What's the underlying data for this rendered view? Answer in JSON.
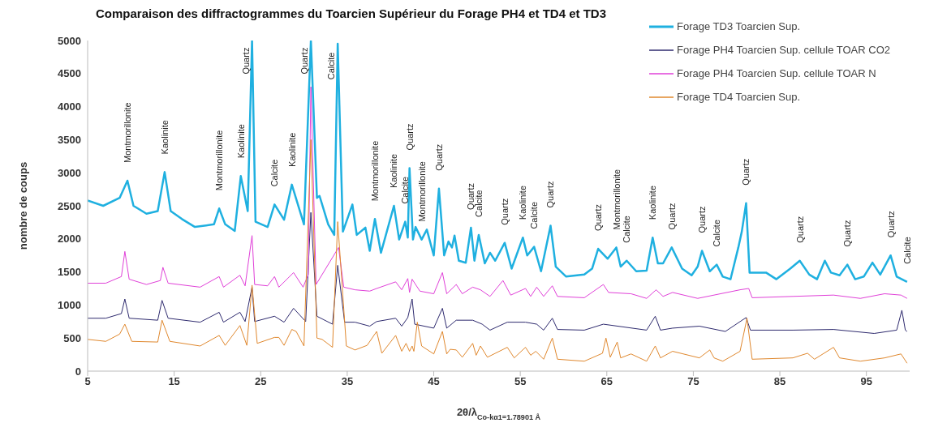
{
  "chart_data": {
    "type": "line",
    "title": "Comparaison des diffractogrammes du Toarcien Supérieur du Forage PH4 et TD4 et TD3",
    "xlabel": "2θ/λ$_{Co-kα1=1.78901 Å}$",
    "ylabel": "nombre de coups",
    "xlim": [
      5,
      100
    ],
    "xticks": [
      5,
      15,
      25,
      35,
      45,
      55,
      65,
      75,
      85,
      95
    ],
    "ylim": [
      0,
      5000
    ],
    "yticks": [
      0,
      500,
      1000,
      1500,
      2000,
      2500,
      3000,
      3500,
      4000,
      4500,
      5000
    ],
    "legend": "top right",
    "series": [
      {
        "name": "Forage TD3 Toarcien Sup.",
        "color": "#1fb0e0",
        "x": [
          5,
          6.8,
          8.7,
          9.6,
          10.3,
          11.8,
          13.1,
          13.9,
          14.6,
          15.9,
          17.4,
          19.6,
          20.2,
          20.9,
          22.0,
          22.7,
          23.5,
          24.0,
          24.4,
          25.8,
          26.6,
          27.7,
          28.6,
          30.0,
          30.8,
          31.5,
          31.8,
          32.8,
          33.5,
          33.9,
          34.5,
          35.6,
          36.1,
          37.1,
          37.6,
          38.2,
          38.9,
          40.4,
          41.0,
          41.7,
          42.0,
          42.2,
          42.6,
          42.9,
          43.6,
          44.2,
          45.0,
          45.6,
          46.2,
          46.7,
          47.1,
          47.4,
          47.9,
          48.7,
          49.3,
          49.7,
          50.2,
          50.9,
          51.5,
          52.1,
          53.2,
          54.0,
          55.3,
          55.8,
          56.6,
          57.4,
          58.5,
          59.1,
          60.3,
          62.4,
          63.3,
          64.0,
          65.1,
          66.1,
          66.6,
          67.3,
          68.4,
          69.6,
          70.3,
          70.9,
          71.5,
          72.5,
          73.7,
          74.8,
          75.5,
          76.0,
          76.9,
          77.7,
          78.4,
          79.3,
          80.2,
          80.6,
          81.1,
          81.5,
          83.4,
          84.6,
          86.2,
          87.3,
          88.4,
          89.3,
          90.2,
          90.9,
          91.9,
          92.8,
          93.7,
          94.7,
          95.7,
          96.6,
          97.8,
          98.5,
          99.7
        ],
        "values": [
          2580,
          2500,
          2620,
          2880,
          2500,
          2380,
          2420,
          3010,
          2420,
          2300,
          2180,
          2220,
          2460,
          2220,
          2120,
          2950,
          2420,
          5000,
          2260,
          2180,
          2520,
          2290,
          2820,
          2220,
          5000,
          2620,
          2650,
          2220,
          2060,
          4950,
          2110,
          2520,
          2060,
          2170,
          1820,
          2300,
          1790,
          2500,
          1990,
          2260,
          2020,
          3070,
          1990,
          2180,
          1990,
          2140,
          1750,
          2760,
          1750,
          1960,
          1870,
          2050,
          1670,
          1640,
          2170,
          1670,
          2060,
          1630,
          1790,
          1670,
          1940,
          1550,
          2020,
          1750,
          1880,
          1510,
          2200,
          1580,
          1430,
          1460,
          1550,
          1850,
          1700,
          1870,
          1580,
          1670,
          1510,
          1520,
          2020,
          1630,
          1630,
          1870,
          1550,
          1450,
          1580,
          1820,
          1510,
          1610,
          1430,
          1390,
          1870,
          2110,
          2540,
          1490,
          1490,
          1390,
          1550,
          1670,
          1460,
          1390,
          1670,
          1490,
          1450,
          1610,
          1390,
          1430,
          1640,
          1460,
          1750,
          1430,
          1350
        ]
      },
      {
        "name": "Forage PH4 Toarcien Sup. cellule TOAR CO2",
        "color": "#2e2a6e",
        "x": [
          5,
          7.1,
          8.9,
          9.3,
          9.8,
          13.1,
          13.6,
          14.3,
          18.0,
          20.2,
          20.7,
          22.6,
          23.2,
          24.0,
          24.3,
          26.6,
          27.7,
          28.8,
          30.2,
          30.8,
          31.5,
          33.3,
          33.9,
          34.7,
          35.9,
          37.6,
          38.4,
          40.6,
          41.3,
          42.0,
          42.5,
          42.8,
          45.0,
          46.0,
          46.5,
          47.6,
          49.5,
          50.6,
          51.5,
          53.5,
          55.6,
          56.9,
          57.7,
          58.7,
          59.3,
          62.4,
          64.6,
          69.6,
          70.6,
          71.2,
          72.6,
          75.7,
          78.7,
          81.1,
          81.6,
          86.5,
          91.2,
          95.9,
          98.5,
          99.1,
          99.5,
          99.7
        ],
        "values": [
          800,
          800,
          870,
          1090,
          800,
          770,
          1070,
          800,
          740,
          890,
          740,
          890,
          750,
          1270,
          750,
          830,
          740,
          950,
          750,
          2400,
          830,
          710,
          1600,
          740,
          740,
          680,
          750,
          800,
          680,
          810,
          1090,
          710,
          650,
          950,
          650,
          770,
          770,
          710,
          620,
          740,
          740,
          710,
          620,
          800,
          630,
          620,
          710,
          620,
          830,
          620,
          650,
          680,
          600,
          810,
          620,
          620,
          630,
          570,
          620,
          920,
          620,
          600
        ]
      },
      {
        "name": "Forage PH4 Toarcien Sup. cellule TOAR N",
        "color": "#e040d8",
        "x": [
          5,
          7.1,
          8.9,
          9.3,
          9.8,
          11.8,
          13.4,
          13.7,
          14.3,
          18.0,
          20.2,
          20.7,
          22.6,
          23.2,
          24.0,
          24.3,
          25.8,
          26.6,
          27.1,
          28.8,
          29.9,
          30.5,
          30.8,
          31.4,
          34.0,
          34.6,
          35.9,
          37.6,
          38.4,
          40.6,
          41.3,
          42.0,
          42.2,
          42.5,
          43.4,
          45.0,
          46.0,
          46.5,
          47.6,
          48.3,
          49.5,
          50.4,
          51.5,
          53.0,
          53.9,
          55.6,
          56.2,
          56.9,
          57.7,
          58.7,
          59.3,
          62.4,
          64.6,
          65.2,
          67.8,
          69.6,
          70.7,
          71.5,
          72.6,
          75.5,
          80.4,
          81.4,
          81.8,
          86.5,
          91.2,
          94.3,
          97.1,
          99.0,
          99.7
        ],
        "values": [
          1330,
          1330,
          1430,
          1810,
          1390,
          1310,
          1370,
          1570,
          1330,
          1270,
          1430,
          1270,
          1450,
          1290,
          2050,
          1310,
          1290,
          1430,
          1270,
          1490,
          1270,
          1460,
          4300,
          1310,
          1870,
          1270,
          1230,
          1210,
          1250,
          1350,
          1230,
          1400,
          1190,
          1390,
          1210,
          1170,
          1490,
          1170,
          1310,
          1170,
          1270,
          1230,
          1130,
          1370,
          1150,
          1250,
          1130,
          1270,
          1130,
          1290,
          1130,
          1110,
          1310,
          1190,
          1170,
          1100,
          1230,
          1130,
          1190,
          1100,
          1230,
          1250,
          1110,
          1130,
          1150,
          1100,
          1170,
          1150,
          1100
        ]
      },
      {
        "name": "Forage TD4 Toarcien Sup.",
        "color": "#e0882e",
        "x": [
          5,
          7.1,
          8.7,
          9.3,
          10.1,
          13.1,
          13.6,
          14.5,
          18.0,
          20.2,
          20.9,
          22.6,
          23.4,
          24.0,
          24.6,
          26.6,
          27.1,
          27.7,
          28.6,
          29.1,
          30.0,
          30.8,
          31.5,
          32.1,
          33.3,
          33.9,
          34.9,
          35.9,
          37.3,
          38.4,
          39.0,
          40.6,
          41.3,
          41.8,
          42.2,
          42.5,
          42.7,
          43.1,
          43.6,
          45.0,
          46.0,
          46.5,
          46.9,
          47.6,
          48.3,
          49.5,
          49.9,
          50.4,
          51.2,
          53.5,
          54.3,
          55.6,
          56.2,
          56.8,
          57.7,
          58.7,
          59.3,
          62.4,
          64.5,
          64.9,
          65.4,
          66.2,
          66.6,
          67.8,
          69.6,
          70.6,
          71.2,
          72.6,
          75.7,
          76.9,
          77.4,
          78.4,
          80.4,
          81.2,
          81.8,
          86.5,
          88.2,
          89.0,
          91.2,
          91.9,
          94.3,
          97.1,
          99.0,
          99.7
        ],
        "values": [
          480,
          450,
          560,
          710,
          450,
          440,
          770,
          450,
          380,
          540,
          390,
          690,
          390,
          1300,
          420,
          510,
          510,
          390,
          630,
          600,
          380,
          3500,
          500,
          480,
          360,
          2260,
          380,
          320,
          390,
          600,
          270,
          540,
          300,
          420,
          300,
          380,
          300,
          740,
          380,
          260,
          600,
          260,
          330,
          320,
          210,
          420,
          240,
          380,
          210,
          360,
          200,
          360,
          240,
          300,
          180,
          500,
          180,
          150,
          270,
          500,
          210,
          440,
          200,
          260,
          150,
          380,
          200,
          300,
          200,
          320,
          200,
          150,
          300,
          800,
          180,
          200,
          270,
          180,
          360,
          200,
          150,
          200,
          260,
          120
        ]
      }
    ],
    "annotations": [
      {
        "text": "Montmorillonite",
        "x": 9.6,
        "y": 2880
      },
      {
        "text": "Kaolinite",
        "x": 13.9,
        "y": 3010
      },
      {
        "text": "Montmorillonite",
        "x": 20.2,
        "y": 2460
      },
      {
        "text": "Kaolinite",
        "x": 22.7,
        "y": 2950
      },
      {
        "text": "Quartz",
        "x": 24.0,
        "y": 5000
      },
      {
        "text": "Calcite",
        "x": 26.6,
        "y": 2520
      },
      {
        "text": "Kaolinite",
        "x": 28.6,
        "y": 2820
      },
      {
        "text": "Quartz",
        "x": 30.8,
        "y": 5000
      },
      {
        "text": "Calcite",
        "x": 33.9,
        "y": 4950
      },
      {
        "text": "Montmorillonite",
        "x": 38.2,
        "y": 2300
      },
      {
        "text": "Kaolinite",
        "x": 40.4,
        "y": 2500
      },
      {
        "text": "Calcite",
        "x": 41.7,
        "y": 2260
      },
      {
        "text": "Quartz",
        "x": 42.2,
        "y": 3070
      },
      {
        "text": "Montmorillonite",
        "x": 43.6,
        "y": 1990
      },
      {
        "text": "Quartz",
        "x": 45.6,
        "y": 2760
      },
      {
        "text": "Quartz",
        "x": 49.3,
        "y": 2170
      },
      {
        "text": "Calcite",
        "x": 50.2,
        "y": 2060
      },
      {
        "text": "Quartz",
        "x": 53.2,
        "y": 1940
      },
      {
        "text": "Kaolinite",
        "x": 55.3,
        "y": 2020
      },
      {
        "text": "Calcite",
        "x": 56.6,
        "y": 1880
      },
      {
        "text": "Quartz",
        "x": 58.5,
        "y": 2200
      },
      {
        "text": "Quartz",
        "x": 64.0,
        "y": 1850
      },
      {
        "text": "Montmorillonite",
        "x": 66.1,
        "y": 1870
      },
      {
        "text": "Calcite",
        "x": 67.3,
        "y": 1670
      },
      {
        "text": "Kaolinite",
        "x": 70.3,
        "y": 2020
      },
      {
        "text": "Quartz",
        "x": 72.5,
        "y": 1870
      },
      {
        "text": "Quartz",
        "x": 76.0,
        "y": 1820
      },
      {
        "text": "Calcite",
        "x": 77.7,
        "y": 1610
      },
      {
        "text": "Quartz",
        "x": 81.1,
        "y": 2540
      },
      {
        "text": "Quartz",
        "x": 87.3,
        "y": 1670
      },
      {
        "text": "Quartz",
        "x": 92.8,
        "y": 1610
      },
      {
        "text": "Quartz",
        "x": 97.8,
        "y": 1750
      },
      {
        "text": "Calcite",
        "x": 99.7,
        "y": 1350
      }
    ]
  }
}
